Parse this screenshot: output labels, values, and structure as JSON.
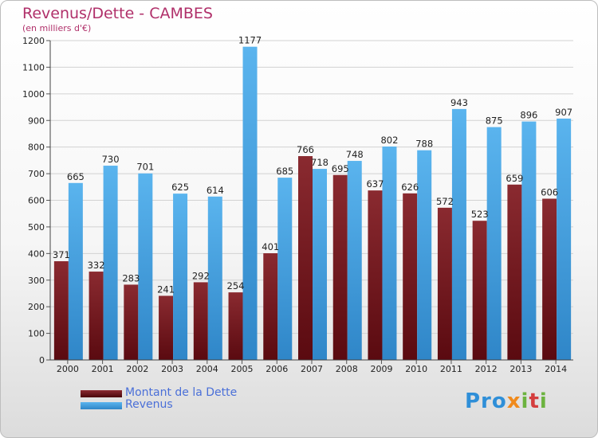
{
  "title": "Revenus/Dette - CAMBES",
  "subtitle": "(en milliers d'€)",
  "logo": "Proxiti",
  "colors": {
    "dette": "#7a1c22",
    "revenus": "#4aa6e6",
    "title": "#b0306a"
  },
  "chart_data": {
    "type": "bar",
    "categories": [
      "2000",
      "2001",
      "2002",
      "2003",
      "2004",
      "2005",
      "2006",
      "2007",
      "2008",
      "2009",
      "2010",
      "2011",
      "2012",
      "2013",
      "2014"
    ],
    "series": [
      {
        "name": "Montant de la Dette",
        "values": [
          371,
          332,
          283,
          241,
          292,
          254,
          401,
          766,
          695,
          637,
          626,
          572,
          523,
          659,
          606
        ]
      },
      {
        "name": "Revenus",
        "values": [
          665,
          730,
          701,
          625,
          614,
          1177,
          685,
          718,
          748,
          802,
          788,
          943,
          875,
          896,
          907
        ]
      }
    ],
    "ylim": [
      0,
      1200
    ],
    "yticks": [
      0,
      100,
      200,
      300,
      400,
      500,
      600,
      700,
      800,
      900,
      1000,
      1100,
      1200
    ],
    "grid": true,
    "legend_position": "bottom-left"
  }
}
